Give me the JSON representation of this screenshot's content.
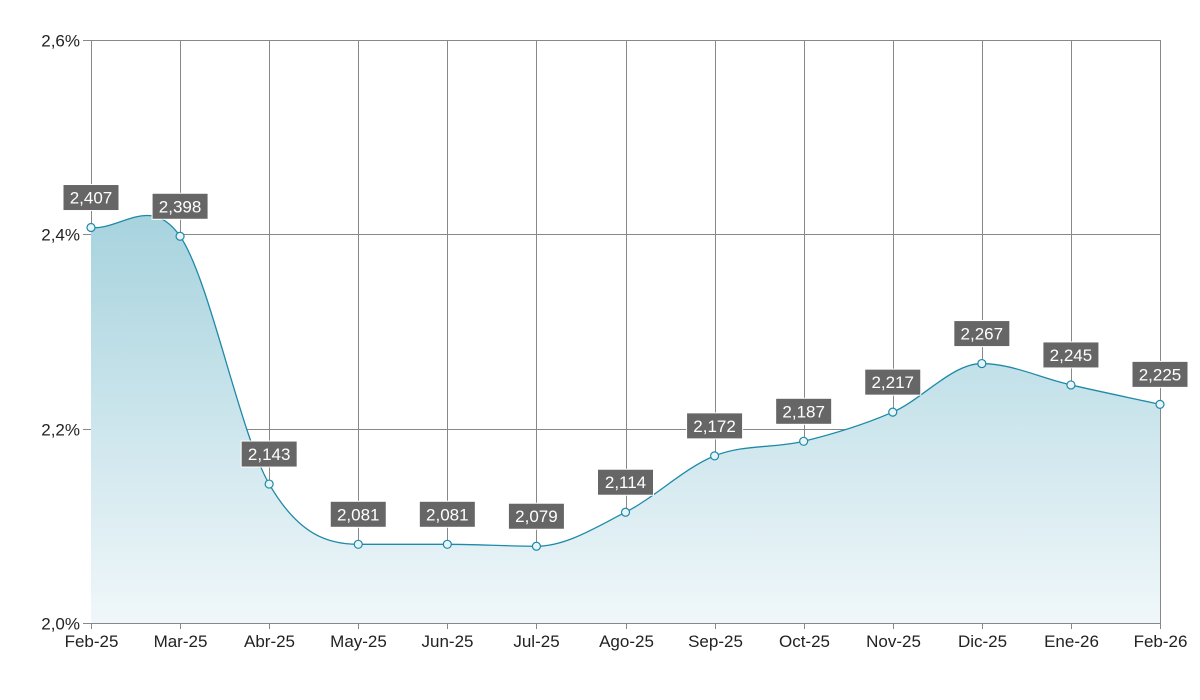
{
  "chart_data": {
    "type": "area",
    "title": "",
    "xlabel": "",
    "ylabel": "",
    "categories": [
      "Feb-25",
      "Mar-25",
      "Abr-25",
      "May-25",
      "Jun-25",
      "Jul-25",
      "Ago-25",
      "Sep-25",
      "Oct-25",
      "Nov-25",
      "Dic-25",
      "Ene-26",
      "Feb-26"
    ],
    "values": [
      2.407,
      2.398,
      2.143,
      2.081,
      2.081,
      2.079,
      2.114,
      2.172,
      2.187,
      2.217,
      2.267,
      2.245,
      2.225
    ],
    "data_labels": [
      "2,407",
      "2,398",
      "2,143",
      "2,081",
      "2,081",
      "2,079",
      "2,114",
      "2,172",
      "2,187",
      "2,217",
      "2,267",
      "2,245",
      "2,225"
    ],
    "ylim": [
      2.0,
      2.6
    ],
    "y_ticks": [
      2.0,
      2.2,
      2.4,
      2.6
    ],
    "y_tick_labels": [
      "2,0%",
      "2,2%",
      "2,4%",
      "2,6%"
    ],
    "grid": true,
    "legend": "none",
    "colors": {
      "line": "#1e8aa8",
      "area_top": "#a7d3de",
      "area_bottom": "#f0f7fa",
      "grid": "#888888",
      "label_bg": "#666666",
      "label_text": "#ffffff",
      "axis_text": "#222222"
    }
  }
}
